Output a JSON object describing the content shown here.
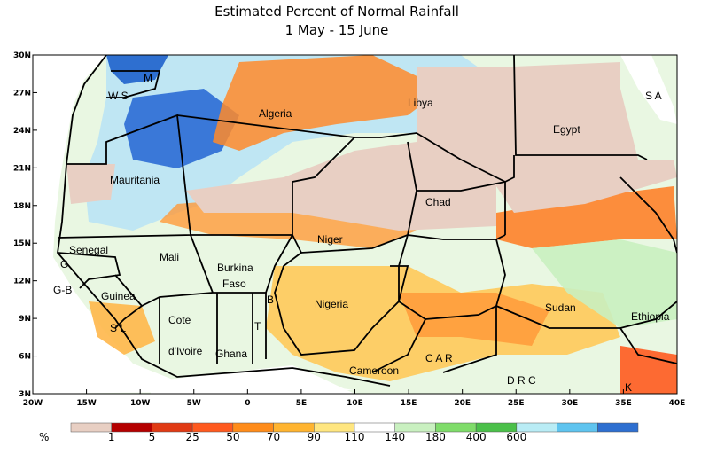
{
  "title_line1": "Estimated Percent of Normal Rainfall",
  "title_line2": "1 May - 15 June",
  "lat_ticks": [
    "30N",
    "27N",
    "24N",
    "21N",
    "18N",
    "15N",
    "12N",
    "9N",
    "6N",
    "3N"
  ],
  "lon_ticks": [
    "20W",
    "15W",
    "10W",
    "5W",
    "0",
    "5E",
    "10E",
    "15E",
    "20E",
    "25E",
    "30E",
    "35E",
    "40E"
  ],
  "countries": [
    "Algeria",
    "Libya",
    "Egypt",
    "W S",
    "M",
    "S A",
    "Mauritania",
    "Chad",
    "Niger",
    "Senegal",
    "G",
    "G-B",
    "Mali",
    "Burkina",
    "Faso",
    "Guinea",
    "S L",
    "Cote",
    "d'Ivoire",
    "Ghana",
    "B",
    "T",
    "Nigeria",
    "Sudan",
    "Ethiopia",
    "Cameroon",
    "C A R",
    "D R C",
    "K"
  ],
  "colorbar": {
    "unit": "%",
    "labels": [
      "1",
      "5",
      "25",
      "50",
      "70",
      "90",
      "110",
      "140",
      "180",
      "400",
      "600"
    ],
    "colors": [
      "#e8cfc3",
      "#b40000",
      "#e03a14",
      "#ff5a1f",
      "#ff8c1a",
      "#ffb430",
      "#ffe680",
      "#ffffff",
      "#c9f0c0",
      "#7fdc6a",
      "#4bc04a",
      "#b9ecf5",
      "#5fc4ef",
      "#2e6fd0"
    ]
  }
}
